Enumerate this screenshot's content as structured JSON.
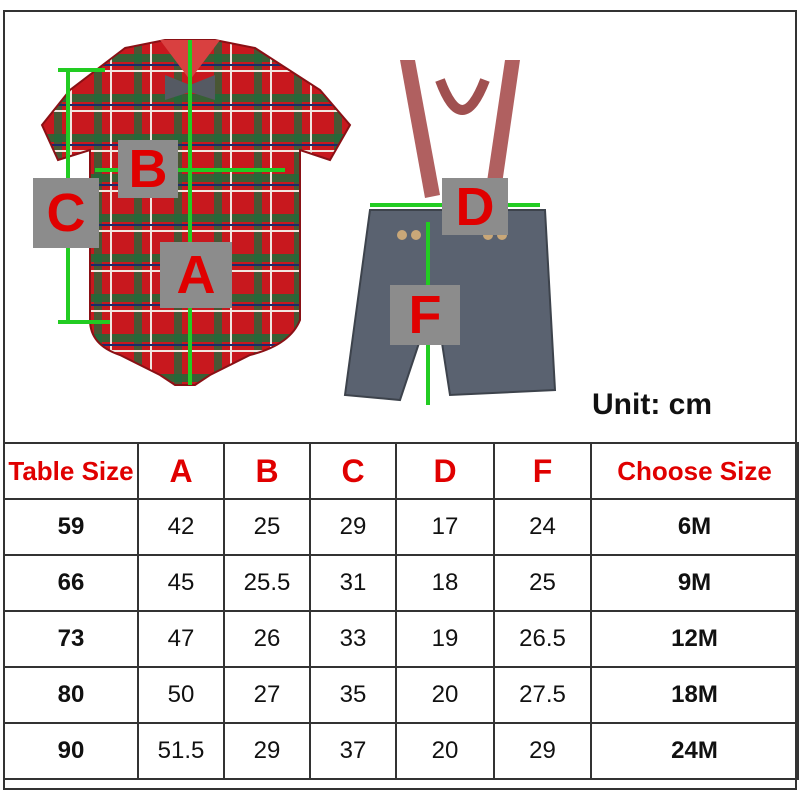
{
  "labels": {
    "a": "A",
    "b": "B",
    "c": "C",
    "d": "D",
    "f": "F"
  },
  "unit": "Unit: cm",
  "colors": {
    "header_text": "#e00000",
    "arrow": "#22cc22",
    "label_box": "#8c8c8c",
    "romper": "#c8181e",
    "shorts": "#5a6270"
  },
  "table": {
    "headers": [
      "Table Size",
      "A",
      "B",
      "C",
      "D",
      "F",
      "Choose Size"
    ],
    "rows": [
      [
        "59",
        "42",
        "25",
        "29",
        "17",
        "24",
        "6M"
      ],
      [
        "66",
        "45",
        "25.5",
        "31",
        "18",
        "25",
        "9M"
      ],
      [
        "73",
        "47",
        "26",
        "33",
        "19",
        "26.5",
        "12M"
      ],
      [
        "80",
        "50",
        "27",
        "35",
        "20",
        "27.5",
        "18M"
      ],
      [
        "90",
        "51.5",
        "29",
        "37",
        "20",
        "29",
        "24M"
      ]
    ]
  }
}
